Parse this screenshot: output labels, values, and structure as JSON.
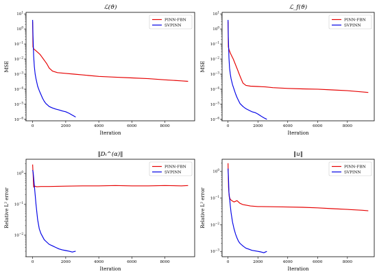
{
  "chart_data": [
    {
      "type": "line",
      "title": "ℒ(ϑ)",
      "xlabel": "Iteration",
      "ylabel": "MSE",
      "log_y": true,
      "xlim": [
        -400,
        9800
      ],
      "ylim_exp": [
        -6.1,
        1.1
      ],
      "xticks": [
        0,
        2000,
        4000,
        6000,
        8000
      ],
      "yticks_exp": [
        -6,
        -5,
        -4,
        -3,
        -2,
        -1,
        0,
        1
      ],
      "legend": {
        "position": "top-right"
      },
      "series": [
        {
          "name": "PINN-FBN",
          "color": "#e60000",
          "x": [
            0,
            20,
            80,
            150,
            250,
            350,
            450,
            550,
            650,
            750,
            850,
            1000,
            1200,
            1500,
            2000,
            2500,
            3000,
            4000,
            5000,
            6000,
            7000,
            8000,
            9000,
            9400
          ],
          "y_exp": [
            0.5,
            -1.2,
            -1.35,
            -1.4,
            -1.5,
            -1.6,
            -1.7,
            -1.85,
            -2.0,
            -2.15,
            -2.3,
            -2.6,
            -2.8,
            -2.9,
            -2.95,
            -3.0,
            -3.05,
            -3.15,
            -3.2,
            -3.25,
            -3.3,
            -3.38,
            -3.45,
            -3.48
          ]
        },
        {
          "name": "SVPINN",
          "color": "#0000e6",
          "x": [
            0,
            20,
            60,
            100,
            150,
            200,
            300,
            400,
            500,
            600,
            700,
            800,
            1000,
            1200,
            1400,
            1600,
            1800,
            2000,
            2200,
            2400,
            2600
          ],
          "y_exp": [
            0.6,
            -0.4,
            -1.8,
            -2.5,
            -3.0,
            -3.3,
            -3.8,
            -4.1,
            -4.35,
            -4.6,
            -4.8,
            -4.95,
            -5.15,
            -5.25,
            -5.32,
            -5.38,
            -5.45,
            -5.5,
            -5.6,
            -5.72,
            -5.85
          ]
        }
      ]
    },
    {
      "type": "line",
      "title": "ℒ_f(ϑ)",
      "xlabel": "Iteration",
      "ylabel": "MSE",
      "log_y": true,
      "xlim": [
        -400,
        9800
      ],
      "ylim_exp": [
        -6.1,
        1.1
      ],
      "xticks": [
        0,
        2000,
        4000,
        6000,
        8000
      ],
      "yticks_exp": [
        -6,
        -5,
        -4,
        -3,
        -2,
        -1,
        0,
        1
      ],
      "legend": {
        "position": "top-right"
      },
      "series": [
        {
          "name": "PINN-FBN",
          "color": "#e60000",
          "x": [
            0,
            20,
            80,
            150,
            250,
            350,
            450,
            550,
            650,
            750,
            850,
            1000,
            1200,
            1500,
            2000,
            2500,
            3000,
            4000,
            5000,
            6000,
            7000,
            8000,
            9000,
            9400
          ],
          "y_exp": [
            0.5,
            -1.2,
            -1.4,
            -1.6,
            -1.8,
            -2.0,
            -2.25,
            -2.5,
            -2.75,
            -3.0,
            -3.25,
            -3.6,
            -3.75,
            -3.8,
            -3.82,
            -3.85,
            -3.9,
            -3.95,
            -3.98,
            -4.0,
            -4.05,
            -4.1,
            -4.18,
            -4.22
          ]
        },
        {
          "name": "SVPINN",
          "color": "#0000e6",
          "x": [
            0,
            20,
            60,
            100,
            150,
            200,
            300,
            400,
            500,
            600,
            700,
            800,
            1000,
            1200,
            1400,
            1600,
            1800,
            2000,
            2200,
            2400,
            2600
          ],
          "y_exp": [
            0.6,
            -0.5,
            -1.9,
            -2.6,
            -3.0,
            -3.3,
            -3.7,
            -4.0,
            -4.3,
            -4.55,
            -4.75,
            -4.95,
            -5.15,
            -5.3,
            -5.4,
            -5.5,
            -5.55,
            -5.65,
            -5.78,
            -5.9,
            -6.0
          ]
        }
      ]
    },
    {
      "type": "line",
      "title": "‖Dₜ^(α)‖",
      "xlabel": "Iteration",
      "ylabel": "Relative L² error",
      "log_y": true,
      "xlim": [
        -400,
        9800
      ],
      "ylim_exp": [
        -2.7,
        0.45
      ],
      "xticks": [
        0,
        2000,
        4000,
        6000,
        8000
      ],
      "yticks_exp": [
        -2,
        -1,
        0
      ],
      "legend": {
        "position": "top-right"
      },
      "series": [
        {
          "name": "PINN-FBN",
          "color": "#e60000",
          "x": [
            0,
            30,
            60,
            120,
            250,
            500,
            1000,
            2000,
            3000,
            4000,
            5000,
            6000,
            7000,
            8000,
            9000,
            9400
          ],
          "y_exp": [
            0.28,
            -0.08,
            -0.45,
            -0.42,
            -0.44,
            -0.43,
            -0.43,
            -0.42,
            -0.41,
            -0.41,
            -0.4,
            -0.41,
            -0.41,
            -0.4,
            -0.41,
            -0.4
          ]
        },
        {
          "name": "SVPINN",
          "color": "#0000e6",
          "x": [
            0,
            30,
            60,
            100,
            150,
            200,
            300,
            400,
            500,
            600,
            700,
            800,
            1000,
            1200,
            1400,
            1600,
            1800,
            2000,
            2200,
            2400,
            2600
          ],
          "y_exp": [
            0.1,
            0.02,
            -0.15,
            -0.4,
            -0.7,
            -1.0,
            -1.5,
            -1.8,
            -1.95,
            -2.05,
            -2.15,
            -2.2,
            -2.3,
            -2.35,
            -2.4,
            -2.45,
            -2.48,
            -2.5,
            -2.52,
            -2.55,
            -2.52
          ]
        }
      ]
    },
    {
      "type": "line",
      "title": "‖u‖",
      "xlabel": "Iteration",
      "ylabel": "Relative L² error",
      "log_y": true,
      "xlim": [
        -400,
        9800
      ],
      "ylim_exp": [
        -3.2,
        0.45
      ],
      "xticks": [
        0,
        2000,
        4000,
        6000,
        8000
      ],
      "yticks_exp": [
        -3,
        -2,
        -1,
        0
      ],
      "legend": {
        "position": "top-right"
      },
      "series": [
        {
          "name": "PINN-FBN",
          "color": "#e60000",
          "x": [
            0,
            30,
            80,
            150,
            250,
            400,
            600,
            800,
            1000,
            1500,
            2000,
            3000,
            4000,
            5000,
            6000,
            7000,
            8000,
            9000,
            9400
          ],
          "y_exp": [
            0.3,
            -0.6,
            -0.95,
            -1.05,
            -1.1,
            -1.15,
            -1.1,
            -1.2,
            -1.25,
            -1.3,
            -1.32,
            -1.33,
            -1.34,
            -1.35,
            -1.37,
            -1.4,
            -1.43,
            -1.46,
            -1.48
          ]
        },
        {
          "name": "SVPINN",
          "color": "#0000e6",
          "x": [
            0,
            30,
            60,
            100,
            150,
            200,
            300,
            400,
            500,
            600,
            700,
            800,
            1000,
            1200,
            1400,
            1600,
            1800,
            2000,
            2200,
            2400,
            2600
          ],
          "y_exp": [
            0.1,
            -0.3,
            -0.8,
            -1.0,
            -1.3,
            -1.55,
            -1.9,
            -2.15,
            -2.35,
            -2.5,
            -2.62,
            -2.7,
            -2.8,
            -2.88,
            -2.92,
            -2.96,
            -2.98,
            -3.0,
            -3.02,
            -3.05,
            -3.0
          ]
        }
      ]
    }
  ]
}
